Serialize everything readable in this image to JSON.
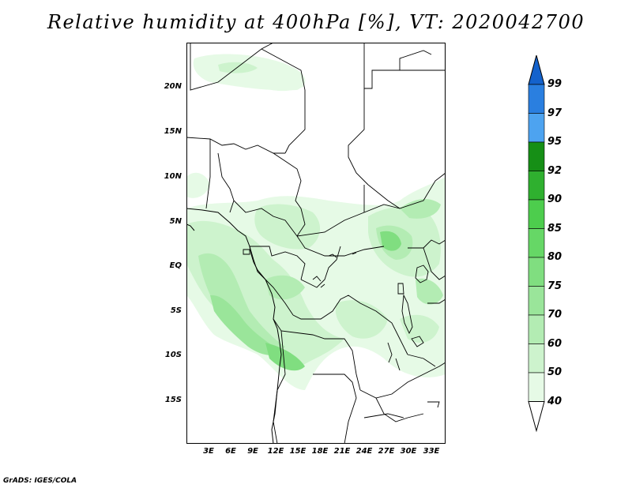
{
  "title": "Relative humidity at 400hPa [%], VT: 2020042700",
  "credit": "GrADS: IGES/COLA",
  "axes": {
    "lon_ticks": [
      "3E",
      "6E",
      "9E",
      "12E",
      "15E",
      "18E",
      "21E",
      "24E",
      "27E",
      "30E",
      "33E"
    ],
    "lat_ticks": [
      "20N",
      "15N",
      "10N",
      "5N",
      "EQ",
      "5S",
      "10S",
      "15S"
    ],
    "lon_range": [
      0,
      35
    ],
    "lat_range": [
      -20,
      25
    ]
  },
  "colorbar": {
    "levels": [
      "40",
      "50",
      "60",
      "70",
      "75",
      "80",
      "85",
      "90",
      "92",
      "95",
      "97",
      "99"
    ],
    "colors": [
      "#ffffff",
      "#e6fae6",
      "#cdf3cd",
      "#b3ecb3",
      "#9ae59a",
      "#80de80",
      "#66d766",
      "#4dcd4d",
      "#2fb02f",
      "#168f16",
      "#4da3f0",
      "#2a7fe0",
      "#1462cc"
    ]
  }
}
